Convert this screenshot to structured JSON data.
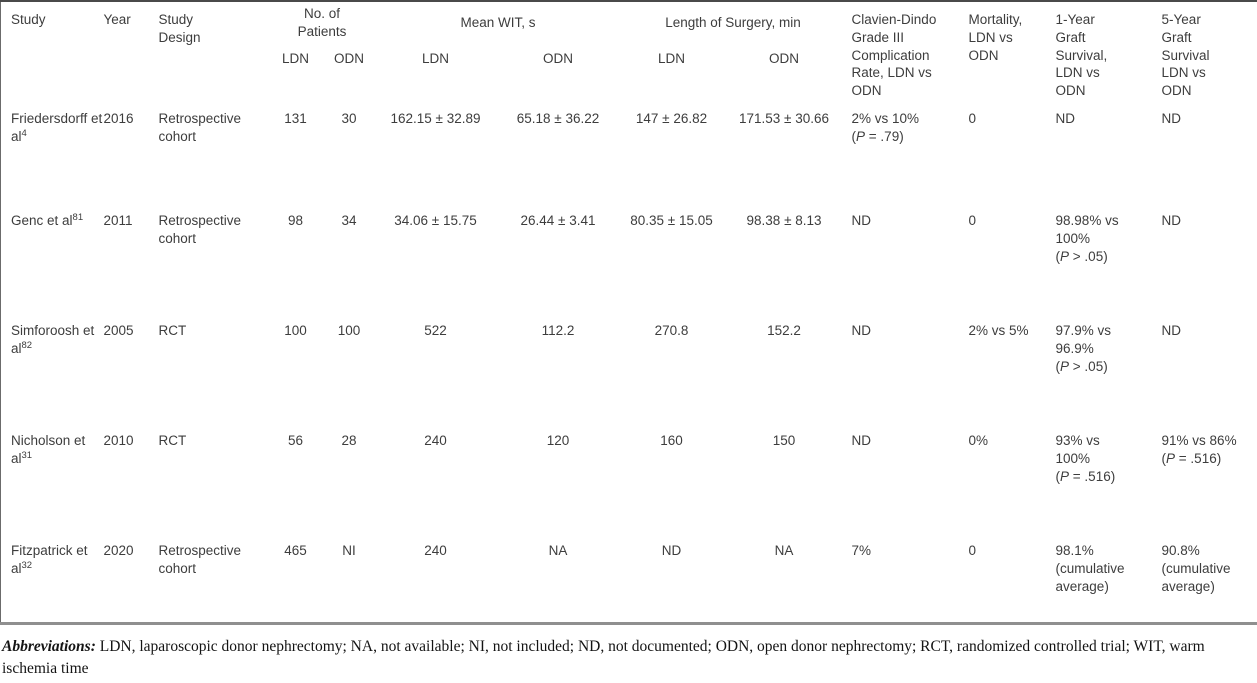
{
  "table": {
    "headers": {
      "study": "Study",
      "year": "Year",
      "design": "Study Design",
      "patients_group": "No. of Patients",
      "wit_group": "Mean WIT, s",
      "surgery_group": "Length of Surgery, min",
      "clavien": "Clavien-Dindo Grade III Complication Rate, LDN vs ODN",
      "mortality": "Mortality, LDN vs ODN",
      "graft1": "1-Year Graft Survival, LDN vs ODN",
      "graft5": "5-Year Graft Survival LDN vs ODN",
      "ldn": "LDN",
      "odn": "ODN"
    },
    "rows": [
      {
        "study": {
          "name": "Friedersdorff et al",
          "ref": "4"
        },
        "year": "2016",
        "design": "Retrospective cohort",
        "pat_ldn": "131",
        "pat_odn": "30",
        "wit_ldn": "162.15 ± 32.89",
        "wit_odn": "65.18 ± 36.22",
        "surg_ldn": "147 ± 26.82",
        "surg_odn": "171.53 ± 30.66",
        "complication": {
          "text": "2% vs 10%",
          "p": "(P = .79)"
        },
        "mortality": "0",
        "graft1": {
          "text": "ND"
        },
        "graft5": {
          "text": "ND"
        }
      },
      {
        "study": {
          "name": "Genc et al",
          "ref": "81"
        },
        "year": "2011",
        "design": "Retrospective cohort",
        "pat_ldn": "98",
        "pat_odn": "34",
        "wit_ldn": "34.06 ± 15.75",
        "wit_odn": "26.44 ± 3.41",
        "surg_ldn": "80.35 ± 15.05",
        "surg_odn": "98.38 ± 8.13",
        "complication": {
          "text": "ND"
        },
        "mortality": "0",
        "graft1": {
          "text": "98.98% vs 100%",
          "p": "(P > .05)"
        },
        "graft5": {
          "text": "ND"
        }
      },
      {
        "study": {
          "name": "Simforoosh et al",
          "ref": "82"
        },
        "year": "2005",
        "design": "RCT",
        "pat_ldn": "100",
        "pat_odn": "100",
        "wit_ldn": "522",
        "wit_odn": "112.2",
        "surg_ldn": "270.8",
        "surg_odn": "152.2",
        "complication": {
          "text": "ND"
        },
        "mortality": "2% vs 5%",
        "graft1": {
          "text": "97.9% vs 96.9%",
          "p": "(P > .05)"
        },
        "graft5": {
          "text": "ND"
        }
      },
      {
        "study": {
          "name": "Nicholson et al",
          "ref": "31"
        },
        "year": "2010",
        "design": "RCT",
        "pat_ldn": "56",
        "pat_odn": "28",
        "wit_ldn": "240",
        "wit_odn": "120",
        "surg_ldn": "160",
        "surg_odn": "150",
        "complication": {
          "text": "ND"
        },
        "mortality": "0%",
        "graft1": {
          "text": "93% vs 100%",
          "p": "(P = .516)"
        },
        "graft5": {
          "text": "91% vs 86%",
          "p": "(P = .516)"
        }
      },
      {
        "study": {
          "name": "Fitzpatrick et al",
          "ref": "32"
        },
        "year": "2020",
        "design": "Retrospective cohort",
        "pat_ldn": "465",
        "pat_odn": "NI",
        "wit_ldn": "240",
        "wit_odn": "NA",
        "surg_ldn": "ND",
        "surg_odn": "NA",
        "complication": {
          "text": "7%"
        },
        "mortality": "0",
        "graft1": {
          "text": "98.1% (cumulative average)"
        },
        "graft5": {
          "text": "90.8% (cumulative average)"
        }
      }
    ]
  },
  "footer": {
    "label": "Abbreviations:",
    "text": "LDN, laparoscopic donor nephrectomy; NA, not available; NI, not included; ND, not documented; ODN, open donor nephrectomy; RCT, randomized controlled trial; WIT, warm ischemia time"
  }
}
